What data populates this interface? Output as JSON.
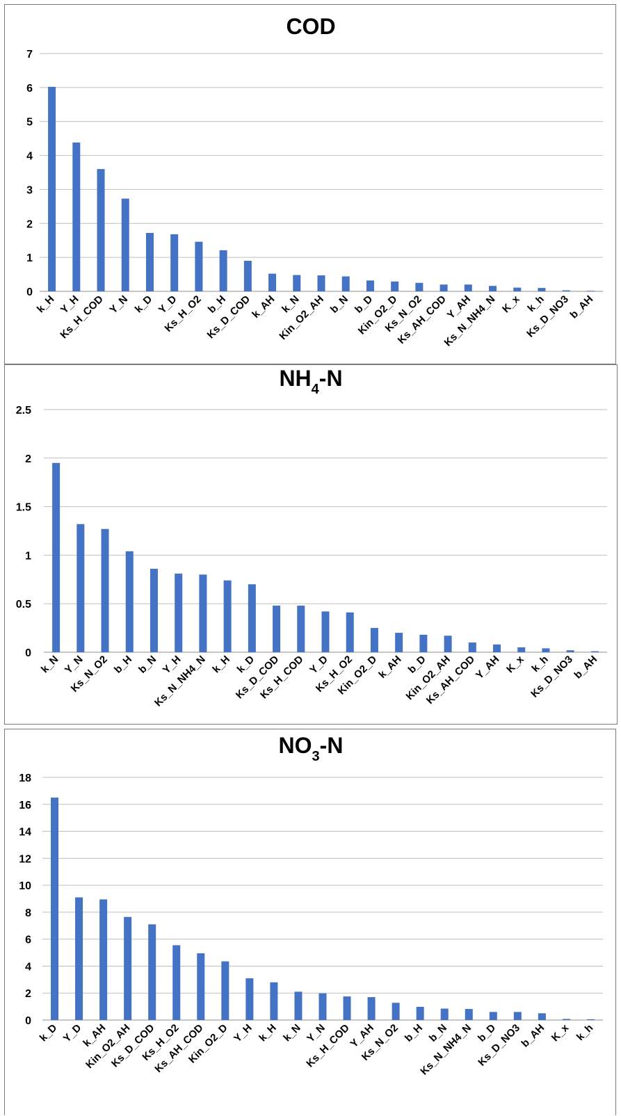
{
  "chart_data": [
    {
      "type": "bar",
      "title": "COD",
      "title_sub": "",
      "title_tail": "",
      "ylim": [
        0,
        7
      ],
      "yticks": [
        0,
        1,
        2,
        3,
        4,
        5,
        6,
        7
      ],
      "ytick_labels": [
        "0",
        "1",
        "2",
        "3",
        "4",
        "5",
        "6",
        "7"
      ],
      "grid": true,
      "bar_color": "#4472c4",
      "categories": [
        "k_H",
        "Y_H",
        "Ks_H_COD",
        "Y_N",
        "k_D",
        "Y_D",
        "Ks_H_O2",
        "b_H",
        "Ks_D_COD",
        "k_AH",
        "k_N",
        "Kin_O2_AH",
        "b_N",
        "b_D",
        "Kin_O2_D",
        "Ks_N_O2",
        "Ks_AH_COD",
        "Y_AH",
        "Ks_N_NH4_N",
        "K_x",
        "k_h",
        "Ks_D_NO3",
        "b_AH"
      ],
      "values": [
        6.02,
        4.38,
        3.6,
        2.73,
        1.72,
        1.68,
        1.46,
        1.21,
        0.9,
        0.52,
        0.48,
        0.47,
        0.44,
        0.32,
        0.29,
        0.25,
        0.2,
        0.2,
        0.16,
        0.11,
        0.1,
        0.03,
        0.01
      ]
    },
    {
      "type": "bar",
      "title": "NH",
      "title_sub": "4",
      "title_tail": "-N",
      "ylim": [
        0,
        2.5
      ],
      "yticks": [
        0,
        0.5,
        1,
        1.5,
        2,
        2.5
      ],
      "ytick_labels": [
        "0",
        "0.5",
        "1",
        "1.5",
        "2",
        "2.5"
      ],
      "grid": true,
      "bar_color": "#4472c4",
      "categories": [
        "k_N",
        "Y_N",
        "Ks_N_O2",
        "b_H",
        "b_N",
        "Y_H",
        "Ks_N_NH4_N",
        "k_H",
        "k_D",
        "Ks_D_COD",
        "Ks_H_COD",
        "Y_D",
        "Ks_H_O2",
        "Kin_O2_D",
        "k_AH",
        "b_D",
        "Kin_O2_AH",
        "Ks_AH_COD",
        "Y_AH",
        "K_x",
        "k_h",
        "Ks_D_NO3",
        "b_AH"
      ],
      "values": [
        1.95,
        1.32,
        1.27,
        1.04,
        0.86,
        0.81,
        0.8,
        0.74,
        0.7,
        0.48,
        0.48,
        0.42,
        0.41,
        0.25,
        0.2,
        0.18,
        0.17,
        0.1,
        0.08,
        0.05,
        0.04,
        0.02,
        0.01
      ]
    },
    {
      "type": "bar",
      "title": "NO",
      "title_sub": "3",
      "title_tail": "-N",
      "ylim": [
        0,
        18
      ],
      "yticks": [
        0,
        2,
        4,
        6,
        8,
        10,
        12,
        14,
        16,
        18
      ],
      "ytick_labels": [
        "0",
        "2",
        "4",
        "6",
        "8",
        "10",
        "12",
        "14",
        "16",
        "18"
      ],
      "grid": true,
      "bar_color": "#4472c4",
      "categories": [
        "k_D",
        "Y_D",
        "k_AH",
        "Kin_O2_AH",
        "Ks_D_COD",
        "Ks_H_O2",
        "Ks_AH_COD",
        "Kin_O2_D",
        "Y_H",
        "k_H",
        "k_N",
        "Y_N",
        "Ks_H_COD",
        "Y_AH",
        "Ks_N_O2",
        "b_H",
        "b_N",
        "Ks_N_NH4_N",
        "b_D",
        "Ks_D_NO3",
        "b_AH",
        "K_x",
        "k_h"
      ],
      "values": [
        16.5,
        9.1,
        8.95,
        7.65,
        7.1,
        5.55,
        4.95,
        4.35,
        3.1,
        2.8,
        2.1,
        1.98,
        1.75,
        1.7,
        1.28,
        0.98,
        0.85,
        0.82,
        0.6,
        0.6,
        0.5,
        0.08,
        0.06
      ]
    }
  ]
}
